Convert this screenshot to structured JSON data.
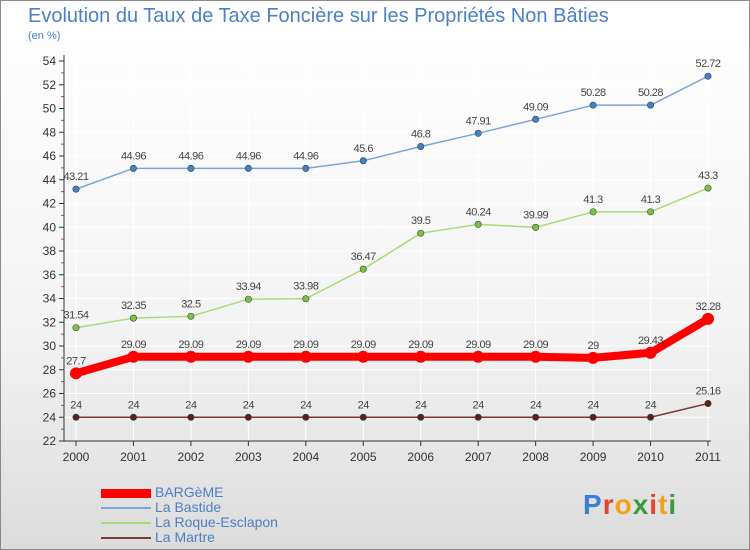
{
  "title": "Evolution du Taux de Taxe Foncière sur les Propriétés Non Bâties",
  "subtitle": "(en %)",
  "logo": {
    "text": "Proxiti",
    "colors": [
      "#3a7fd5",
      "#e8442c",
      "#f2a21a",
      "#3a9b3a",
      "#e8442c",
      "#f2a21a",
      "#3a9b3a"
    ]
  },
  "chart_data": {
    "type": "line",
    "categories": [
      "2000",
      "2001",
      "2002",
      "2003",
      "2004",
      "2005",
      "2006",
      "2007",
      "2008",
      "2009",
      "2010",
      "2011"
    ],
    "ylim": [
      22,
      54
    ],
    "yticks": [
      22,
      24,
      26,
      28,
      30,
      32,
      34,
      36,
      38,
      40,
      42,
      44,
      46,
      48,
      50,
      52,
      54
    ],
    "grid": true,
    "legend_position": "bottom-left",
    "series": [
      {
        "name": "La Bastide",
        "color": "#7aa7d6",
        "marker": "#3f82c8",
        "values": [
          43.21,
          44.96,
          44.96,
          44.96,
          44.96,
          45.6,
          46.8,
          47.91,
          49.09,
          50.28,
          50.28,
          52.72
        ],
        "labels": [
          "43.21",
          "44.96",
          "44.96",
          "44.96",
          "44.96",
          "45.6",
          "46.8",
          "47.91",
          "49.09",
          "50.28",
          "50.28",
          "52.72"
        ]
      },
      {
        "name": "La Roque-Esclapon",
        "color": "#a8dc78",
        "marker": "#7cc242",
        "values": [
          31.54,
          32.35,
          32.5,
          33.94,
          33.98,
          36.47,
          39.5,
          40.24,
          39.99,
          41.3,
          41.3,
          43.3
        ],
        "labels": [
          "31.54",
          "32.35",
          "32.5",
          "33.94",
          "33.98",
          "36.47",
          "39.5",
          "40.24",
          "39.99",
          "41.3",
          "41.3",
          "43.3"
        ]
      },
      {
        "name": "La Martre",
        "color": "#7a3b3b",
        "marker": "#5a1f1f",
        "values": [
          24,
          24,
          24,
          24,
          24,
          24,
          24,
          24,
          24,
          24,
          24,
          25.16
        ],
        "labels": [
          "24",
          "24",
          "24",
          "24",
          "24",
          "24",
          "24",
          "24",
          "24",
          "24",
          "24",
          "25.16"
        ]
      },
      {
        "name": "BARGèME",
        "color": "#ff0000",
        "marker": "#ff0000",
        "bold": true,
        "values": [
          27.7,
          29.09,
          29.09,
          29.09,
          29.09,
          29.09,
          29.09,
          29.09,
          29.09,
          29,
          29.43,
          32.28
        ],
        "labels": [
          "27.7",
          "29.09",
          "29.09",
          "29.09",
          "29.09",
          "29.09",
          "29.09",
          "29.09",
          "29.09",
          "29",
          "29.43",
          "32.28"
        ]
      }
    ]
  },
  "legend": [
    {
      "label": "BARGèME",
      "color": "#ff0000",
      "bold": true
    },
    {
      "label": "La Bastide",
      "color": "#7aa7d6"
    },
    {
      "label": "La Roque-Esclapon",
      "color": "#a8dc78"
    },
    {
      "label": "La Martre",
      "color": "#7a3b3b"
    }
  ]
}
